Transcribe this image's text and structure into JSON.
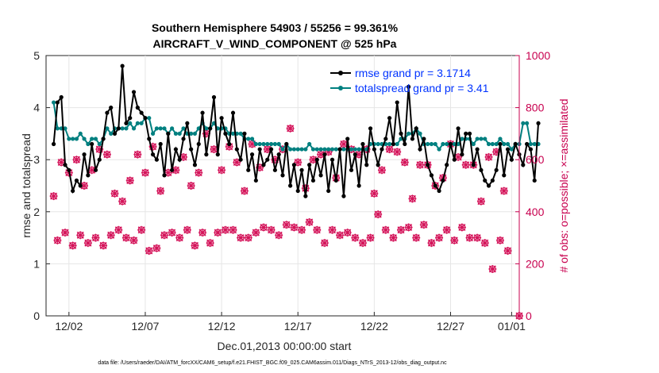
{
  "chart_data": {
    "type": "line",
    "title": [
      "Southern Hemisphere 54903 / 55256 = 99.361%",
      "AIRCRAFT_V_WIND_COMPONENT @ 525 hPa"
    ],
    "xlabel": "Dec.01,2013 00:00:00 start",
    "ylabel_left": "rmse and totalspread",
    "ylabel_right": "# of obs: o=possible; ×=assimilated",
    "footnote": "data file: /Users/raeder/DAI/ATM_forcXX/CAM6_setup/f.e21.FHIST_BGC.f09_025.CAM6assim.011/Diags_NTrS_2013-12/obs_diag_output.nc",
    "xlim": [
      0.5,
      31.5
    ],
    "x_ticks": [
      {
        "x": 2,
        "label": "12/02"
      },
      {
        "x": 7,
        "label": "12/07"
      },
      {
        "x": 12,
        "label": "12/12"
      },
      {
        "x": 17,
        "label": "12/17"
      },
      {
        "x": 22,
        "label": "12/22"
      },
      {
        "x": 27,
        "label": "12/27"
      },
      {
        "x": 31,
        "label": "01/01"
      }
    ],
    "ylim_left": [
      0,
      5
    ],
    "y_ticks_left": [
      "0",
      "1",
      "2",
      "3",
      "4",
      "5"
    ],
    "ylim_right": [
      0,
      1000
    ],
    "y_ticks_right": [
      "0",
      "200",
      "400",
      "600",
      "800",
      "1000"
    ],
    "x_start": 1.0,
    "x_step": 0.25,
    "series": [
      {
        "name": "rmse grand pr = 3.1714",
        "color": "#000000",
        "marker": "dot",
        "values": [
          3.3,
          4.1,
          4.2,
          2.9,
          2.8,
          2.4,
          2.6,
          2.5,
          3.1,
          2.7,
          3.3,
          2.8,
          3.0,
          3.4,
          3.9,
          4.0,
          3.5,
          3.6,
          4.8,
          3.7,
          3.8,
          4.3,
          4.0,
          3.9,
          3.8,
          3.4,
          3.1,
          3.0,
          3.3,
          2.7,
          3.5,
          2.8,
          3.2,
          3.0,
          3.4,
          3.7,
          3.2,
          2.9,
          3.3,
          3.9,
          3.1,
          3.6,
          4.2,
          3.1,
          3.8,
          3.5,
          3.3,
          3.9,
          3.2,
          3.0,
          3.5,
          2.8,
          3.1,
          2.6,
          3.2,
          2.9,
          3.0,
          3.2,
          2.8,
          3.1,
          2.7,
          3.3,
          2.5,
          2.9,
          2.4,
          2.8,
          2.3,
          2.9,
          2.6,
          3.0,
          2.7,
          3.1,
          2.4,
          3.0,
          2.6,
          3.2,
          2.3,
          3.4,
          2.8,
          3.1,
          2.5,
          3.3,
          2.9,
          3.6,
          3.2,
          2.9,
          3.2,
          3.4,
          3.8,
          3.3,
          4.1,
          3.5,
          3.3,
          4.4,
          3.4,
          3.6,
          3.2,
          3.4,
          2.9,
          2.7,
          2.5,
          2.4,
          2.6,
          2.9,
          3.3,
          3.0,
          3.6,
          3.1,
          3.5,
          3.5,
          2.9,
          3.2,
          2.8,
          2.6,
          2.5,
          2.6,
          2.8,
          3.3,
          2.7,
          3.2,
          3.0,
          3.3,
          3.1,
          2.9,
          3.3,
          3.2,
          2.6,
          3.7
        ]
      },
      {
        "name": "totalspread grand pr = 3.41",
        "color": "#008080",
        "marker": "dot",
        "values": [
          4.1,
          3.6,
          3.6,
          3.6,
          3.4,
          3.4,
          3.4,
          3.5,
          3.4,
          3.3,
          3.4,
          3.4,
          3.3,
          3.4,
          3.6,
          3.5,
          3.6,
          3.6,
          3.6,
          3.6,
          3.7,
          3.6,
          3.7,
          3.7,
          3.8,
          3.8,
          3.5,
          3.6,
          3.6,
          3.6,
          3.5,
          3.6,
          3.5,
          3.5,
          3.6,
          3.5,
          3.5,
          3.5,
          3.6,
          3.7,
          3.6,
          3.6,
          3.7,
          3.6,
          3.6,
          3.6,
          3.5,
          3.5,
          3.5,
          3.5,
          3.4,
          3.4,
          3.4,
          3.3,
          3.3,
          3.3,
          3.3,
          3.3,
          3.3,
          3.3,
          3.2,
          3.3,
          3.2,
          3.2,
          3.2,
          3.2,
          3.2,
          3.3,
          3.2,
          3.2,
          3.2,
          3.2,
          3.2,
          3.2,
          3.2,
          3.2,
          3.2,
          3.2,
          3.2,
          3.2,
          3.2,
          3.2,
          3.2,
          3.3,
          3.3,
          3.3,
          3.3,
          3.3,
          3.3,
          3.3,
          3.3,
          3.4,
          3.4,
          3.5,
          3.5,
          3.6,
          3.5,
          3.3,
          3.3,
          3.3,
          3.3,
          3.2,
          3.3,
          3.3,
          3.3,
          3.3,
          3.3,
          3.4,
          3.4,
          3.4,
          3.3,
          3.4,
          3.4,
          3.4,
          3.3,
          3.3,
          3.3,
          3.4,
          3.3,
          3.3,
          3.2,
          3.3,
          3.3,
          3.7,
          3.7,
          3.3,
          3.3,
          3.3
        ]
      }
    ],
    "obs_counts": {
      "axis": "right",
      "color": "#d4145a",
      "marker": "o/×",
      "x_step": 0.5,
      "values_00Z": [
        460,
        590,
        550,
        600,
        500,
        560,
        640,
        620,
        470,
        440,
        520,
        620,
        550,
        650,
        480,
        550,
        560,
        610,
        500,
        550,
        700,
        640,
        560,
        650,
        590,
        480,
        660,
        570,
        640,
        600,
        640,
        720,
        590,
        490,
        600,
        620,
        630,
        530,
        660,
        640,
        620,
        640,
        470,
        560,
        640,
        630,
        590,
        450,
        580,
        580,
        500,
        530,
        660,
        610,
        580,
        580,
        440,
        610,
        630,
        480
      ],
      "values_12Z": [
        290,
        320,
        270,
        310,
        280,
        300,
        270,
        310,
        330,
        300,
        290,
        330,
        250,
        260,
        310,
        320,
        300,
        330,
        270,
        320,
        280,
        320,
        330,
        330,
        300,
        300,
        320,
        340,
        330,
        310,
        350,
        340,
        330,
        360,
        330,
        280,
        330,
        310,
        320,
        300,
        280,
        300,
        390,
        330,
        300,
        330,
        340,
        300,
        350,
        280,
        300,
        330,
        290,
        340,
        300,
        300,
        280,
        180,
        290,
        250
      ]
    }
  }
}
